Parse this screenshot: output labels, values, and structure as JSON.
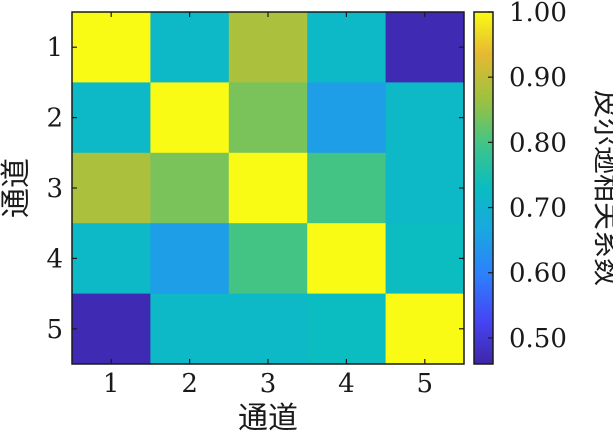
{
  "chart_data": {
    "type": "heatmap",
    "x_categories": [
      "1",
      "2",
      "3",
      "4",
      "5"
    ],
    "y_categories": [
      "1",
      "2",
      "3",
      "4",
      "5"
    ],
    "values": [
      [
        1.0,
        0.72,
        0.88,
        0.72,
        0.47
      ],
      [
        0.72,
        1.0,
        0.84,
        0.65,
        0.72
      ],
      [
        0.88,
        0.84,
        1.0,
        0.8,
        0.72
      ],
      [
        0.72,
        0.65,
        0.8,
        1.0,
        0.73
      ],
      [
        0.47,
        0.72,
        0.72,
        0.73,
        1.0
      ]
    ],
    "xlabel": "通道",
    "ylabel": "通道",
    "colorbar": {
      "label": "皮尔逊相关系数",
      "range": [
        0.46,
        1.0
      ],
      "ticks": [
        0.5,
        0.6,
        0.7,
        0.8,
        0.9,
        1.0
      ],
      "tick_labels": [
        "0.50",
        "0.60",
        "0.70",
        "0.80",
        "0.90",
        "1.00"
      ],
      "colormap": "parula"
    },
    "grid": false
  }
}
